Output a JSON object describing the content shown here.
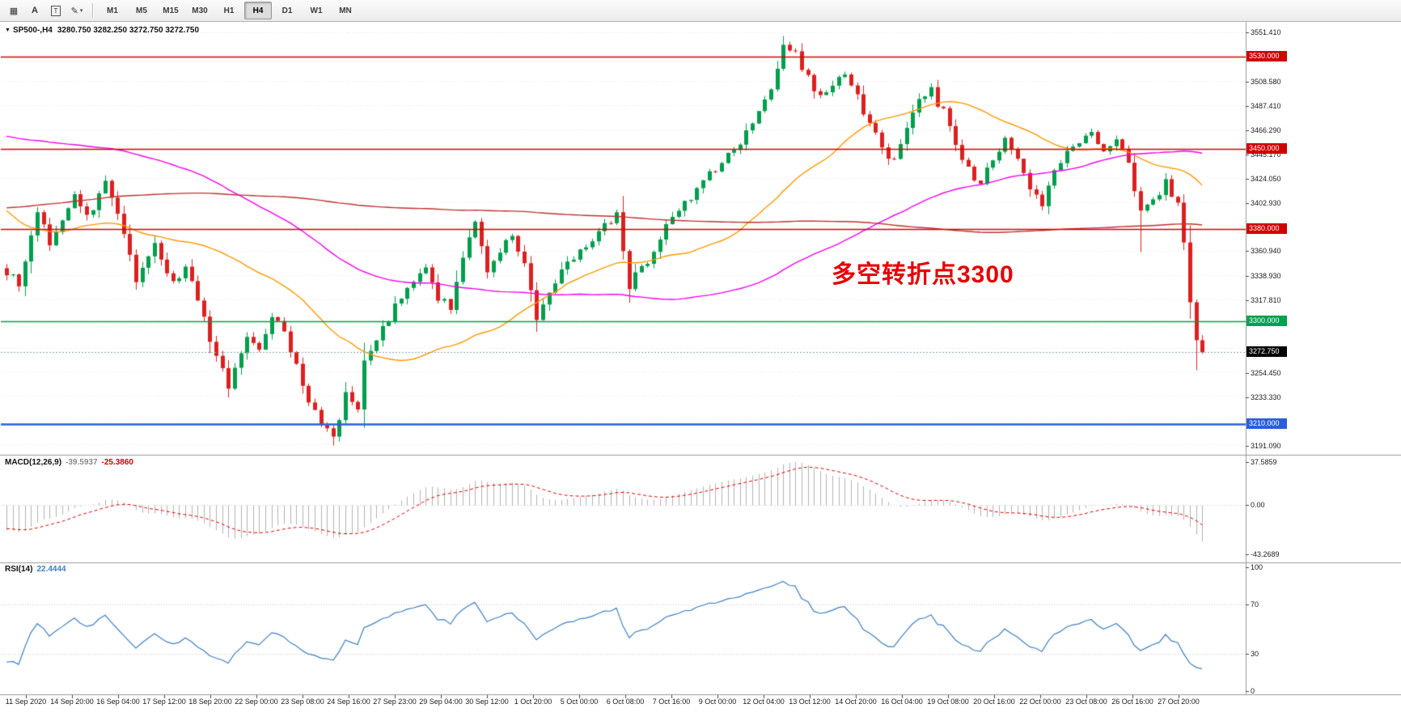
{
  "toolbar": {
    "icon_buttons": [
      {
        "name": "grid",
        "glyph": "▦"
      },
      {
        "name": "letter-a",
        "glyph": "A"
      },
      {
        "name": "text-tool",
        "glyph": "T"
      },
      {
        "name": "draw-tool",
        "glyph": "✎",
        "caret": "▾"
      }
    ],
    "timeframes": [
      {
        "label": "M1"
      },
      {
        "label": "M5"
      },
      {
        "label": "M15"
      },
      {
        "label": "M30"
      },
      {
        "label": "H1"
      },
      {
        "label": "H4"
      },
      {
        "label": "D1"
      },
      {
        "label": "W1"
      },
      {
        "label": "MN"
      }
    ],
    "active_timeframe": "H4"
  },
  "header": {
    "collapse_glyph": "▼",
    "symbol": "SP500-,H4",
    "ohlc": "3280.750 3282.250 3272.750 3272.750"
  },
  "annotation": {
    "text": "多空转折点3300",
    "color": "#e60000"
  },
  "indicators": {
    "macd": {
      "label": "MACD(12,26,9)",
      "value_main": "-39.5937",
      "value_signal": "-25.3860",
      "histogram_color": "#b2b2b2",
      "signal_color": "#e00000",
      "axis_labels": [
        {
          "text": "37.5859",
          "value": 37.5859
        },
        {
          "text": "0.00",
          "value": 0
        },
        {
          "text": "-43.2689",
          "value": -43.2689
        }
      ]
    },
    "rsi": {
      "label": "RSI(14)",
      "value": "22.4444",
      "color": "#3e7fc1",
      "levels": [
        30,
        70
      ],
      "axis_labels": [
        {
          "text": "100",
          "value": 100
        },
        {
          "text": "70",
          "value": 70
        },
        {
          "text": "30",
          "value": 30
        },
        {
          "text": "0",
          "value": 0
        }
      ]
    }
  },
  "price_axis": {
    "ticks": [
      3551.41,
      3508.58,
      3487.41,
      3466.29,
      3445.17,
      3424.05,
      3402.93,
      3360.94,
      3338.93,
      3317.81,
      3254.45,
      3233.33,
      3191.09
    ],
    "boxes": [
      {
        "text": "3530.000",
        "value": 3530.0,
        "bg": "#d10000"
      },
      {
        "text": "3450.000",
        "value": 3450.0,
        "bg": "#d10000"
      },
      {
        "text": "3380.000",
        "value": 3380.0,
        "bg": "#d10000"
      },
      {
        "text": "3300.000",
        "value": 3300.0,
        "bg": "#00a14b"
      },
      {
        "text": "3272.750",
        "value": 3272.75,
        "bg": "#000000"
      },
      {
        "text": "3210.000",
        "value": 3210.0,
        "bg": "#2b5fd9"
      }
    ]
  },
  "hlines": [
    {
      "price": 3530.0,
      "color": "#d10000",
      "width": 1.5
    },
    {
      "price": 3450.0,
      "color": "#d10000",
      "width": 1.5
    },
    {
      "price": 3380.0,
      "color": "#d10000",
      "width": 1.5
    },
    {
      "price": 3300.0,
      "color": "#00a14b",
      "width": 1.5
    },
    {
      "price": 3210.0,
      "color": "#2b5fd9",
      "width": 2.5
    },
    {
      "price": 3272.75,
      "color": "#8fa3b0",
      "width": 1,
      "dotted": true
    }
  ],
  "time_axis": {
    "labels": [
      "11 Sep 2020",
      "14 Sep 20:00",
      "16 Sep 04:00",
      "17 Sep 12:00",
      "18 Sep 20:00",
      "22 Sep 00:00",
      "23 Sep 08:00",
      "24 Sep 16:00",
      "27 Sep 23:00",
      "29 Sep 04:00",
      "30 Sep 12:00",
      "1 Oct 20:00",
      "5 Oct 00:00",
      "6 Oct 08:00",
      "7 Oct 16:00",
      "9 Oct 00:00",
      "12 Oct 04:00",
      "13 Oct 12:00",
      "14 Oct 20:00",
      "16 Oct 04:00",
      "19 Oct 08:00",
      "20 Oct 16:00",
      "22 Oct 00:00",
      "23 Oct 08:00",
      "26 Oct 16:00",
      "27 Oct 20:00"
    ]
  },
  "chart_data": {
    "type": "candlestick",
    "symbol": "SP500-",
    "timeframe": "H4",
    "visible_bars": 195,
    "last_close": 3272.75,
    "up_color": "#009e4c",
    "down_color": "#dd2020",
    "close_waypoints": [
      [
        0,
        3342
      ],
      [
        2,
        3330
      ],
      [
        5,
        3396
      ],
      [
        7,
        3368
      ],
      [
        9,
        3390
      ],
      [
        11,
        3412
      ],
      [
        13,
        3392
      ],
      [
        16,
        3420
      ],
      [
        19,
        3378
      ],
      [
        21,
        3338
      ],
      [
        24,
        3366
      ],
      [
        27,
        3332
      ],
      [
        29,
        3348
      ],
      [
        32,
        3302
      ],
      [
        34,
        3268
      ],
      [
        36,
        3240
      ],
      [
        39,
        3286
      ],
      [
        41,
        3272
      ],
      [
        43,
        3304
      ],
      [
        45,
        3292
      ],
      [
        47,
        3258
      ],
      [
        49,
        3228
      ],
      [
        51,
        3212
      ],
      [
        53,
        3198
      ],
      [
        55,
        3238
      ],
      [
        57,
        3226
      ],
      [
        58,
        3262
      ],
      [
        61,
        3292
      ],
      [
        64,
        3322
      ],
      [
        66,
        3336
      ],
      [
        68,
        3348
      ],
      [
        70,
        3322
      ],
      [
        72,
        3312
      ],
      [
        74,
        3356
      ],
      [
        76,
        3384
      ],
      [
        78,
        3342
      ],
      [
        80,
        3362
      ],
      [
        82,
        3372
      ],
      [
        84,
        3352
      ],
      [
        86,
        3302
      ],
      [
        88,
        3326
      ],
      [
        90,
        3344
      ],
      [
        92,
        3354
      ],
      [
        95,
        3368
      ],
      [
        97,
        3386
      ],
      [
        99,
        3392
      ],
      [
        101,
        3332
      ],
      [
        103,
        3344
      ],
      [
        105,
        3362
      ],
      [
        107,
        3382
      ],
      [
        110,
        3402
      ],
      [
        112,
        3416
      ],
      [
        114,
        3428
      ],
      [
        117,
        3442
      ],
      [
        120,
        3462
      ],
      [
        122,
        3478
      ],
      [
        124,
        3505
      ],
      [
        126,
        3538
      ],
      [
        128,
        3532
      ],
      [
        130,
        3512
      ],
      [
        132,
        3494
      ],
      [
        134,
        3508
      ],
      [
        136,
        3518
      ],
      [
        138,
        3496
      ],
      [
        140,
        3470
      ],
      [
        142,
        3452
      ],
      [
        144,
        3440
      ],
      [
        146,
        3468
      ],
      [
        148,
        3492
      ],
      [
        150,
        3502
      ],
      [
        152,
        3482
      ],
      [
        154,
        3456
      ],
      [
        156,
        3432
      ],
      [
        158,
        3420
      ],
      [
        160,
        3442
      ],
      [
        162,
        3456
      ],
      [
        164,
        3438
      ],
      [
        166,
        3416
      ],
      [
        168,
        3402
      ],
      [
        170,
        3432
      ],
      [
        172,
        3448
      ],
      [
        174,
        3458
      ],
      [
        176,
        3464
      ],
      [
        178,
        3446
      ],
      [
        180,
        3456
      ],
      [
        182,
        3440
      ],
      [
        184,
        3392
      ],
      [
        186,
        3406
      ],
      [
        188,
        3422
      ],
      [
        190,
        3402
      ],
      [
        191,
        3368
      ],
      [
        192,
        3318
      ],
      [
        193,
        3282
      ],
      [
        194,
        3272.75
      ]
    ],
    "prehistory_waypoints": [
      [
        -210,
        3230
      ],
      [
        -185,
        3275
      ],
      [
        -160,
        3310
      ],
      [
        -135,
        3350
      ],
      [
        -110,
        3385
      ],
      [
        -85,
        3430
      ],
      [
        -60,
        3505
      ],
      [
        -45,
        3560
      ],
      [
        -38,
        3578
      ],
      [
        -32,
        3480
      ],
      [
        -26,
        3392
      ],
      [
        -22,
        3342
      ],
      [
        -18,
        3402
      ],
      [
        -14,
        3428
      ],
      [
        -10,
        3398
      ],
      [
        -6,
        3372
      ],
      [
        -1,
        3346
      ]
    ],
    "extremes": [
      [
        53,
        "low",
        3191.5
      ],
      [
        101,
        "low",
        3322
      ],
      [
        126,
        "high",
        3544.5
      ],
      [
        184,
        "low",
        3360
      ],
      [
        193,
        "low",
        3257
      ]
    ],
    "noise": {
      "seed": 7,
      "close_amp": 4,
      "wick_base": 2.5
    },
    "moving_averages": [
      {
        "period": 34,
        "color": "#ff9900"
      },
      {
        "period": 90,
        "color": "#f000f0"
      },
      {
        "period": 190,
        "color": "#c03030"
      }
    ],
    "macd_params": "12,26,9",
    "rsi_period": 14
  }
}
